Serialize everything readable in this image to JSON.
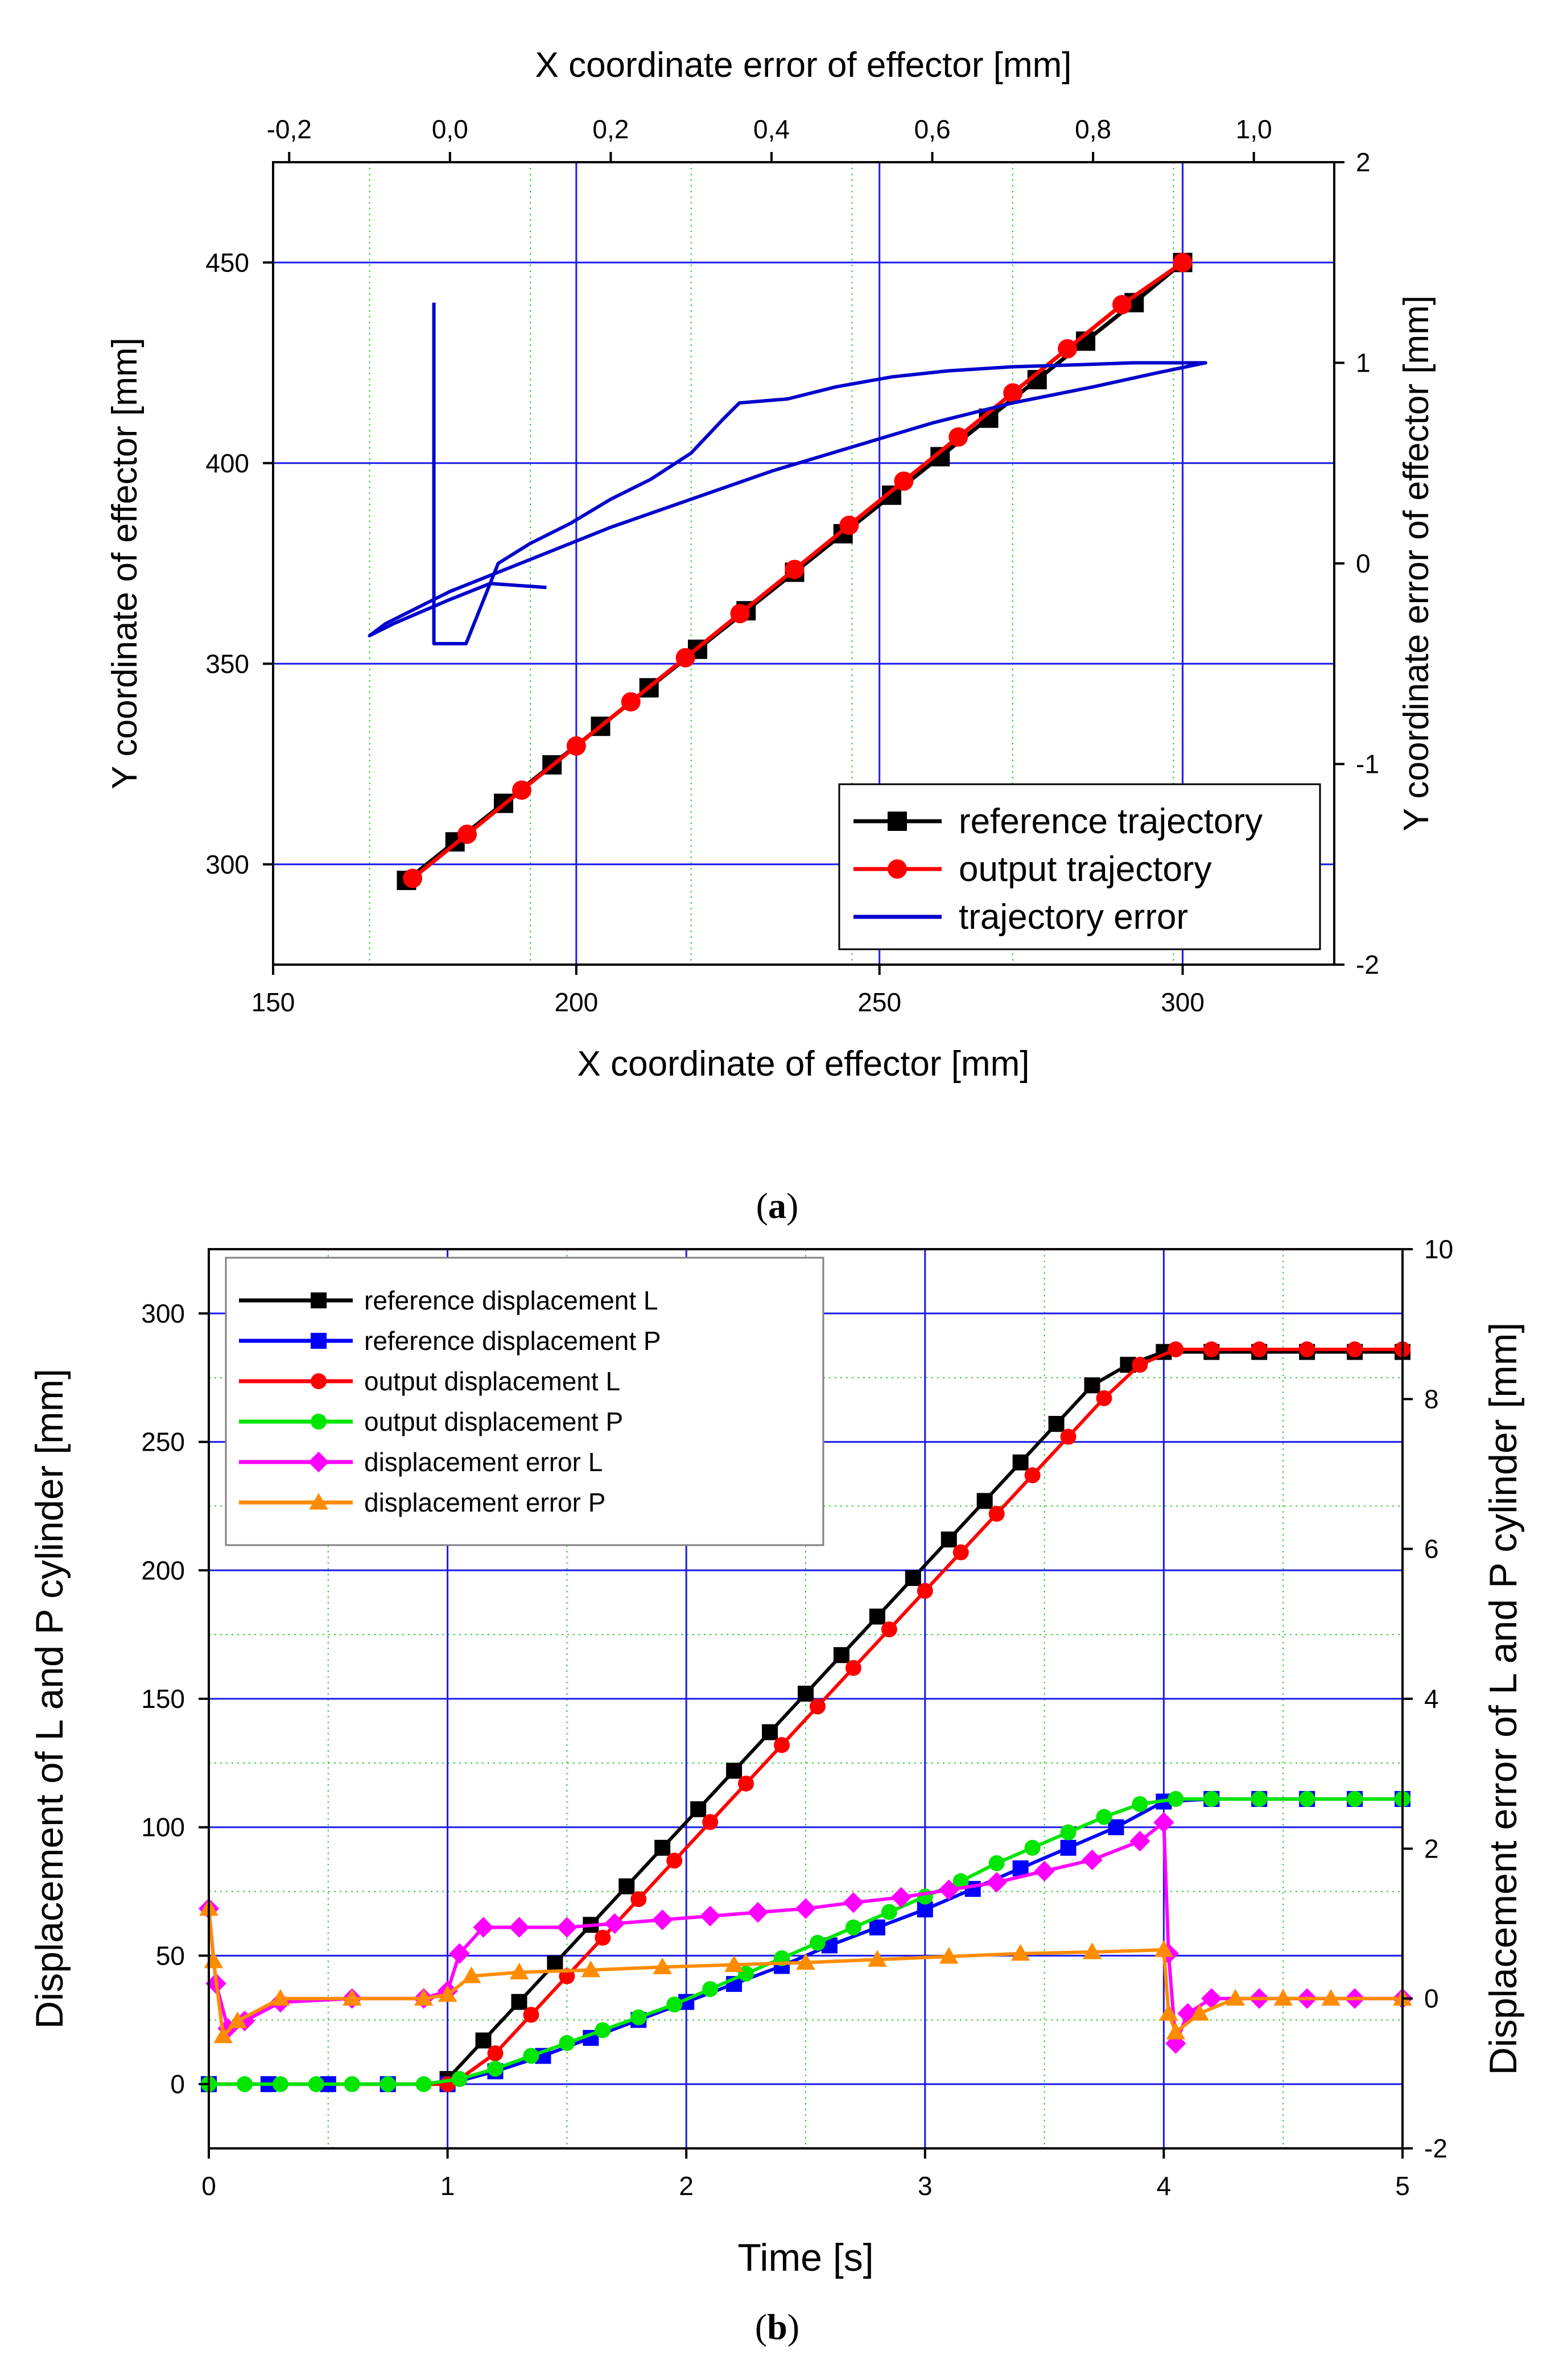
{
  "chart_data": [
    {
      "type": "line",
      "caption_letter": "a",
      "xlabel": "X coordinate of effector [mm]",
      "ylabel": "Y coordinate of effector [mm]",
      "x2label": "X coordinate error of effector [mm]",
      "y2label": "Y coordinate error of effector [mm]",
      "xlim": [
        150,
        325
      ],
      "ylim": [
        275,
        475
      ],
      "x2lim": [
        -0.22,
        1.1
      ],
      "y2lim": [
        -2,
        2
      ],
      "xticks": [
        150,
        200,
        250,
        300
      ],
      "yticks": [
        300,
        350,
        400,
        450
      ],
      "x2ticks": [
        -0.2,
        0.0,
        0.2,
        0.4,
        0.6,
        0.8,
        1.0
      ],
      "x2tick_labels": [
        "-0,2",
        "0,0",
        "0,2",
        "0,4",
        "0,6",
        "0,8",
        "1,0"
      ],
      "y2ticks": [
        -2,
        -1,
        0,
        1,
        2
      ],
      "y2tick_labels": [
        "-2",
        "-1",
        "0",
        "1",
        "2"
      ],
      "legend_position": "bottom-right",
      "series": [
        {
          "name": "reference trajectory",
          "color": "#000000",
          "marker": "square",
          "axes": "primary",
          "x": [
            172,
            180,
            188,
            196,
            204,
            212,
            220,
            228,
            236,
            244,
            252,
            260,
            268,
            276,
            284,
            292,
            300
          ],
          "y": [
            296,
            305.6,
            315.2,
            324.8,
            334.4,
            344,
            353.6,
            363.2,
            372.8,
            382.4,
            392,
            401.6,
            411.2,
            420.8,
            430.4,
            440,
            450
          ]
        },
        {
          "name": "output trajectory",
          "color": "#ff0000",
          "marker": "circle",
          "axes": "primary",
          "x": [
            173,
            182,
            191,
            200,
            209,
            218,
            227,
            236,
            245,
            254,
            263,
            272,
            281,
            290,
            300
          ],
          "y": [
            296.5,
            307.5,
            318.5,
            329.5,
            340.5,
            351.5,
            362.5,
            373.5,
            384.5,
            395.5,
            406.5,
            417.5,
            428.5,
            439.5,
            450
          ]
        },
        {
          "name": "trajectory error",
          "color": "#0000cc",
          "marker": "none",
          "axes": "secondary",
          "x": [
            -0.02,
            -0.02,
            -0.02,
            -0.02,
            -0.02,
            0.02,
            0.06,
            0.1,
            0.15,
            0.2,
            0.25,
            0.3,
            0.34,
            0.36,
            0.42,
            0.48,
            0.55,
            0.62,
            0.7,
            0.78,
            0.85,
            0.9,
            0.94,
            0.88,
            0.8,
            0.7,
            0.6,
            0.5,
            0.4,
            0.3,
            0.2,
            0.1,
            0.0,
            -0.08,
            -0.1,
            -0.07,
            0.0,
            0.05,
            0.12
          ],
          "y": [
            1.3,
            0.9,
            0.5,
            0.1,
            -0.4,
            -0.4,
            0.0,
            0.1,
            0.2,
            0.32,
            0.42,
            0.55,
            0.72,
            0.8,
            0.82,
            0.88,
            0.93,
            0.96,
            0.98,
            0.99,
            1.0,
            1.0,
            1.0,
            0.95,
            0.88,
            0.8,
            0.7,
            0.58,
            0.46,
            0.32,
            0.18,
            0.02,
            -0.14,
            -0.3,
            -0.36,
            -0.3,
            -0.18,
            -0.1,
            -0.12
          ]
        }
      ]
    },
    {
      "type": "line",
      "caption_letter": "b",
      "xlabel": "Time [s]",
      "ylabel": "Displacement of L and P cylinder [mm]",
      "y2label": "Displacement error of L and P cylinder [mm]",
      "xlim": [
        0,
        5
      ],
      "ylim": [
        -25,
        325
      ],
      "y2lim": [
        -2,
        10
      ],
      "xticks": [
        0,
        1,
        2,
        3,
        4,
        5
      ],
      "yticks": [
        0,
        50,
        100,
        150,
        200,
        250,
        300
      ],
      "y2ticks": [
        -2,
        0,
        2,
        4,
        6,
        8,
        10
      ],
      "legend_position": "top-left",
      "series": [
        {
          "name": "reference displacement L",
          "color": "#000000",
          "marker": "square",
          "axes": "primary",
          "x": [
            0,
            1,
            1.0,
            1.15,
            1.3,
            1.45,
            1.6,
            1.75,
            1.9,
            2.05,
            2.2,
            2.35,
            2.5,
            2.65,
            2.8,
            2.95,
            3.1,
            3.25,
            3.4,
            3.55,
            3.7,
            3.85,
            4.0,
            4.2,
            4.4,
            4.6,
            4.8,
            5.0
          ],
          "y": [
            0,
            0,
            2,
            17,
            32,
            47,
            62,
            77,
            92,
            107,
            122,
            137,
            152,
            167,
            182,
            197,
            212,
            227,
            242,
            257,
            272,
            280,
            285,
            285,
            285,
            285,
            285,
            285
          ]
        },
        {
          "name": "reference displacement P",
          "color": "#0000ff",
          "marker": "square",
          "axes": "primary",
          "x": [
            0,
            0.25,
            0.5,
            0.75,
            1.0,
            1.2,
            1.4,
            1.6,
            1.8,
            2.0,
            2.2,
            2.4,
            2.6,
            2.8,
            3.0,
            3.2,
            3.4,
            3.6,
            3.8,
            4.0,
            4.2,
            4.4,
            4.6,
            4.8,
            5.0
          ],
          "y": [
            0,
            0,
            0,
            0,
            0,
            5,
            11,
            18,
            25,
            32,
            39,
            46,
            54,
            61,
            68,
            76,
            84,
            92,
            100,
            110,
            111,
            111,
            111,
            111,
            111
          ]
        },
        {
          "name": "output displacement L",
          "color": "#ff0000",
          "marker": "circle",
          "axes": "primary",
          "x": [
            0,
            1.0,
            1.05,
            1.2,
            1.35,
            1.5,
            1.65,
            1.8,
            1.95,
            2.1,
            2.25,
            2.4,
            2.55,
            2.7,
            2.85,
            3.0,
            3.15,
            3.3,
            3.45,
            3.6,
            3.75,
            3.9,
            4.05,
            4.2,
            4.4,
            4.6,
            4.8,
            5.0
          ],
          "y": [
            0,
            0,
            2,
            12,
            27,
            42,
            57,
            72,
            87,
            102,
            117,
            132,
            147,
            162,
            177,
            192,
            207,
            222,
            237,
            252,
            267,
            280,
            286,
            286,
            286,
            286,
            286,
            286
          ]
        },
        {
          "name": "output displacement P",
          "color": "#00e600",
          "marker": "circle",
          "axes": "primary",
          "x": [
            0,
            0.15,
            0.3,
            0.45,
            0.6,
            0.75,
            0.9,
            1.05,
            1.2,
            1.35,
            1.5,
            1.65,
            1.8,
            1.95,
            2.1,
            2.25,
            2.4,
            2.55,
            2.7,
            2.85,
            3.0,
            3.15,
            3.3,
            3.45,
            3.6,
            3.75,
            3.9,
            4.05,
            4.2,
            4.4,
            4.6,
            4.8,
            5.0
          ],
          "y": [
            0,
            0,
            0,
            0,
            0,
            0,
            0,
            2,
            6,
            11,
            16,
            21,
            26,
            31,
            37,
            43,
            49,
            55,
            61,
            67,
            73,
            79,
            86,
            92,
            98,
            104,
            109,
            111,
            111,
            111,
            111,
            111,
            111
          ]
        },
        {
          "name": "displacement error L",
          "color": "#ff00ff",
          "marker": "diamond",
          "axes": "secondary",
          "x": [
            0,
            0.03,
            0.08,
            0.15,
            0.3,
            0.6,
            0.9,
            1.0,
            1.05,
            1.15,
            1.3,
            1.5,
            1.7,
            1.9,
            2.1,
            2.3,
            2.5,
            2.7,
            2.9,
            3.1,
            3.3,
            3.5,
            3.7,
            3.9,
            4.0,
            4.02,
            4.05,
            4.1,
            4.2,
            4.4,
            4.6,
            4.8,
            5.0
          ],
          "y": [
            1.2,
            0.2,
            -0.4,
            -0.3,
            -0.05,
            0.0,
            0.0,
            0.1,
            0.6,
            0.95,
            0.95,
            0.95,
            1.0,
            1.05,
            1.1,
            1.15,
            1.2,
            1.28,
            1.35,
            1.45,
            1.55,
            1.7,
            1.85,
            2.1,
            2.35,
            0.6,
            -0.6,
            -0.2,
            0.0,
            0.0,
            0.0,
            0.0,
            0.0
          ]
        },
        {
          "name": "displacement error P",
          "color": "#ff8c00",
          "marker": "triangle",
          "axes": "secondary",
          "x": [
            0,
            0.02,
            0.06,
            0.12,
            0.3,
            0.6,
            0.9,
            1.0,
            1.1,
            1.3,
            1.6,
            1.9,
            2.2,
            2.5,
            2.8,
            3.1,
            3.4,
            3.7,
            4.0,
            4.02,
            4.05,
            4.15,
            4.3,
            4.5,
            4.7,
            5.0
          ],
          "y": [
            1.2,
            0.5,
            -0.5,
            -0.3,
            0.0,
            0.0,
            0.0,
            0.05,
            0.3,
            0.35,
            0.38,
            0.42,
            0.45,
            0.48,
            0.52,
            0.56,
            0.6,
            0.62,
            0.65,
            -0.2,
            -0.45,
            -0.2,
            0.0,
            0.0,
            0.0,
            0.0
          ]
        }
      ]
    }
  ]
}
